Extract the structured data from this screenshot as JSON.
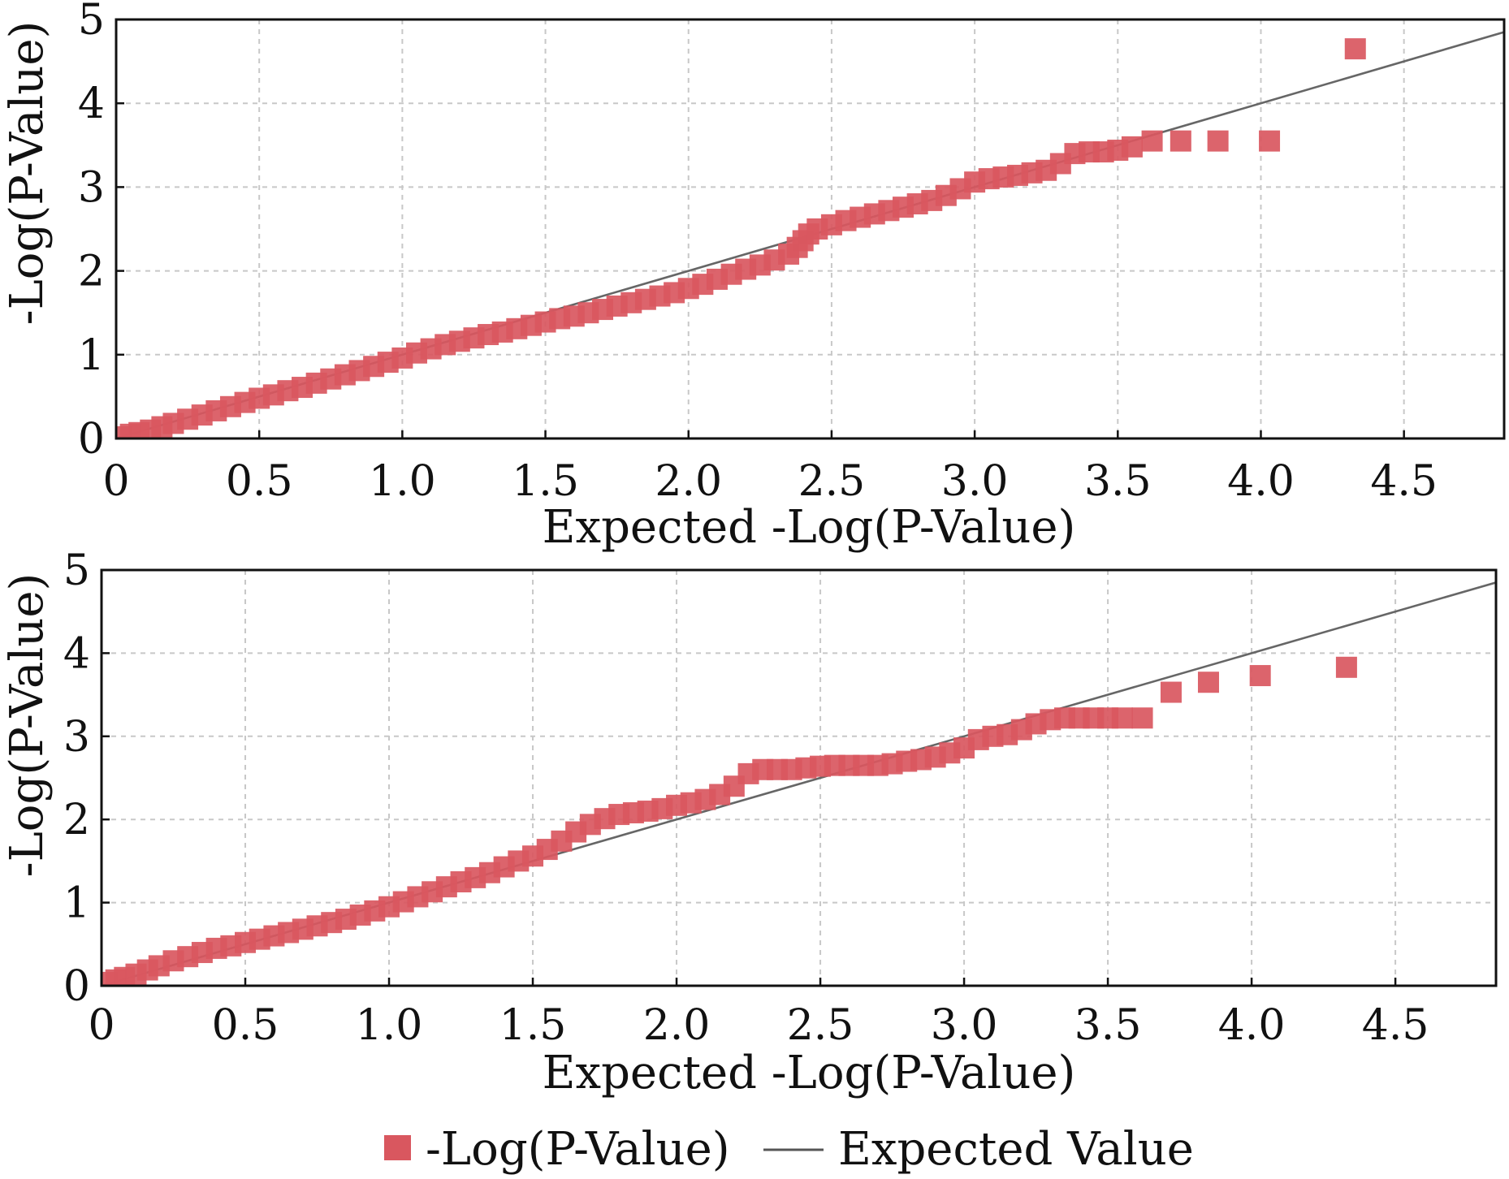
{
  "chart_data": [
    {
      "type": "scatter",
      "xlabel": "Expected -Log(P-Value)",
      "ylabel": "-Log(P-Value)",
      "xlim": [
        0,
        4.85
      ],
      "ylim": [
        0,
        5
      ],
      "xticks": [
        "0",
        "0.5",
        "1.0",
        "1.5",
        "2.0",
        "2.5",
        "3.0",
        "3.5",
        "4.0",
        "4.5"
      ],
      "yticks": [
        "0",
        "1",
        "2",
        "3",
        "4",
        "5"
      ],
      "grid": true,
      "series": [
        {
          "name": "-Log(P-Value)",
          "points": [
            [
              0.02,
              0.02
            ],
            [
              0.05,
              0.05
            ],
            [
              0.08,
              0.07
            ],
            [
              0.12,
              0.1
            ],
            [
              0.16,
              0.14
            ],
            [
              0.2,
              0.18
            ],
            [
              0.25,
              0.23
            ],
            [
              0.3,
              0.28
            ],
            [
              0.35,
              0.33
            ],
            [
              0.4,
              0.38
            ],
            [
              0.45,
              0.43
            ],
            [
              0.5,
              0.48
            ],
            [
              0.55,
              0.52
            ],
            [
              0.6,
              0.57
            ],
            [
              0.65,
              0.61
            ],
            [
              0.7,
              0.66
            ],
            [
              0.75,
              0.71
            ],
            [
              0.8,
              0.76
            ],
            [
              0.85,
              0.81
            ],
            [
              0.9,
              0.86
            ],
            [
              0.95,
              0.91
            ],
            [
              1.0,
              0.96
            ],
            [
              1.05,
              1.02
            ],
            [
              1.1,
              1.07
            ],
            [
              1.15,
              1.12
            ],
            [
              1.2,
              1.16
            ],
            [
              1.25,
              1.2
            ],
            [
              1.3,
              1.24
            ],
            [
              1.35,
              1.27
            ],
            [
              1.4,
              1.31
            ],
            [
              1.45,
              1.35
            ],
            [
              1.5,
              1.39
            ],
            [
              1.55,
              1.43
            ],
            [
              1.6,
              1.46
            ],
            [
              1.65,
              1.5
            ],
            [
              1.7,
              1.54
            ],
            [
              1.75,
              1.58
            ],
            [
              1.8,
              1.62
            ],
            [
              1.85,
              1.66
            ],
            [
              1.9,
              1.7
            ],
            [
              1.95,
              1.74
            ],
            [
              2.0,
              1.79
            ],
            [
              2.05,
              1.84
            ],
            [
              2.1,
              1.9
            ],
            [
              2.15,
              1.96
            ],
            [
              2.2,
              2.02
            ],
            [
              2.25,
              2.07
            ],
            [
              2.3,
              2.13
            ],
            [
              2.35,
              2.2
            ],
            [
              2.38,
              2.28
            ],
            [
              2.4,
              2.36
            ],
            [
              2.42,
              2.44
            ],
            [
              2.45,
              2.5
            ],
            [
              2.5,
              2.55
            ],
            [
              2.55,
              2.6
            ],
            [
              2.6,
              2.64
            ],
            [
              2.65,
              2.68
            ],
            [
              2.7,
              2.72
            ],
            [
              2.75,
              2.76
            ],
            [
              2.8,
              2.8
            ],
            [
              2.85,
              2.84
            ],
            [
              2.9,
              2.9
            ],
            [
              2.95,
              2.98
            ],
            [
              3.0,
              3.06
            ],
            [
              3.05,
              3.1
            ],
            [
              3.1,
              3.12
            ],
            [
              3.15,
              3.14
            ],
            [
              3.2,
              3.17
            ],
            [
              3.25,
              3.2
            ],
            [
              3.3,
              3.28
            ],
            [
              3.35,
              3.4
            ],
            [
              3.4,
              3.42
            ],
            [
              3.45,
              3.42
            ],
            [
              3.5,
              3.44
            ],
            [
              3.55,
              3.48
            ],
            [
              3.62,
              3.55
            ],
            [
              3.72,
              3.55
            ],
            [
              3.85,
              3.55
            ],
            [
              4.03,
              3.55
            ],
            [
              4.33,
              4.65
            ]
          ]
        },
        {
          "name": "Expected Value",
          "points": [
            [
              0,
              0
            ],
            [
              4.85,
              4.85
            ]
          ]
        }
      ]
    },
    {
      "type": "scatter",
      "xlabel": "Expected -Log(P-Value)",
      "ylabel": "-Log(P-Value)",
      "xlim": [
        0,
        4.85
      ],
      "ylim": [
        0,
        5
      ],
      "xticks": [
        "0",
        "0.5",
        "1.0",
        "1.5",
        "2.0",
        "2.5",
        "3.0",
        "3.5",
        "4.0",
        "4.5"
      ],
      "yticks": [
        "0",
        "1",
        "2",
        "3",
        "4",
        "5"
      ],
      "grid": true,
      "series": [
        {
          "name": "-Log(P-Value)",
          "points": [
            [
              0.02,
              0.04
            ],
            [
              0.05,
              0.07
            ],
            [
              0.08,
              0.1
            ],
            [
              0.12,
              0.14
            ],
            [
              0.16,
              0.19
            ],
            [
              0.2,
              0.24
            ],
            [
              0.25,
              0.3
            ],
            [
              0.3,
              0.35
            ],
            [
              0.35,
              0.4
            ],
            [
              0.4,
              0.45
            ],
            [
              0.45,
              0.48
            ],
            [
              0.5,
              0.52
            ],
            [
              0.55,
              0.56
            ],
            [
              0.6,
              0.6
            ],
            [
              0.65,
              0.64
            ],
            [
              0.7,
              0.68
            ],
            [
              0.75,
              0.72
            ],
            [
              0.8,
              0.76
            ],
            [
              0.85,
              0.8
            ],
            [
              0.9,
              0.85
            ],
            [
              0.95,
              0.9
            ],
            [
              1.0,
              0.95
            ],
            [
              1.05,
              1.01
            ],
            [
              1.1,
              1.07
            ],
            [
              1.15,
              1.13
            ],
            [
              1.2,
              1.19
            ],
            [
              1.25,
              1.25
            ],
            [
              1.3,
              1.3
            ],
            [
              1.35,
              1.36
            ],
            [
              1.4,
              1.43
            ],
            [
              1.45,
              1.5
            ],
            [
              1.5,
              1.56
            ],
            [
              1.55,
              1.64
            ],
            [
              1.6,
              1.74
            ],
            [
              1.65,
              1.85
            ],
            [
              1.7,
              1.94
            ],
            [
              1.75,
              2.01
            ],
            [
              1.8,
              2.06
            ],
            [
              1.85,
              2.08
            ],
            [
              1.9,
              2.1
            ],
            [
              1.95,
              2.13
            ],
            [
              2.0,
              2.17
            ],
            [
              2.05,
              2.2
            ],
            [
              2.1,
              2.24
            ],
            [
              2.15,
              2.3
            ],
            [
              2.2,
              2.4
            ],
            [
              2.25,
              2.55
            ],
            [
              2.3,
              2.6
            ],
            [
              2.35,
              2.6
            ],
            [
              2.4,
              2.6
            ],
            [
              2.45,
              2.62
            ],
            [
              2.5,
              2.64
            ],
            [
              2.55,
              2.65
            ],
            [
              2.6,
              2.65
            ],
            [
              2.65,
              2.65
            ],
            [
              2.7,
              2.65
            ],
            [
              2.75,
              2.67
            ],
            [
              2.8,
              2.7
            ],
            [
              2.85,
              2.72
            ],
            [
              2.9,
              2.75
            ],
            [
              2.95,
              2.8
            ],
            [
              3.0,
              2.86
            ],
            [
              3.05,
              2.96
            ],
            [
              3.1,
              3.0
            ],
            [
              3.15,
              3.02
            ],
            [
              3.2,
              3.08
            ],
            [
              3.25,
              3.15
            ],
            [
              3.3,
              3.2
            ],
            [
              3.35,
              3.22
            ],
            [
              3.4,
              3.22
            ],
            [
              3.45,
              3.22
            ],
            [
              3.5,
              3.22
            ],
            [
              3.55,
              3.22
            ],
            [
              3.62,
              3.22
            ],
            [
              3.72,
              3.53
            ],
            [
              3.85,
              3.65
            ],
            [
              4.03,
              3.73
            ],
            [
              4.33,
              3.83
            ]
          ]
        },
        {
          "name": "Expected Value",
          "points": [
            [
              0,
              0
            ],
            [
              4.85,
              4.85
            ]
          ]
        }
      ]
    }
  ],
  "legend": {
    "placement": "bottom-center",
    "items": [
      {
        "label": "-Log(P-Value)",
        "marker": "square",
        "color": "#d9575f"
      },
      {
        "label": "Expected Value",
        "marker": "line",
        "color": "#555555"
      }
    ]
  },
  "colors": {
    "points": "#d9575f",
    "reference_line": "#666666",
    "grid": "#c8c8c8"
  }
}
